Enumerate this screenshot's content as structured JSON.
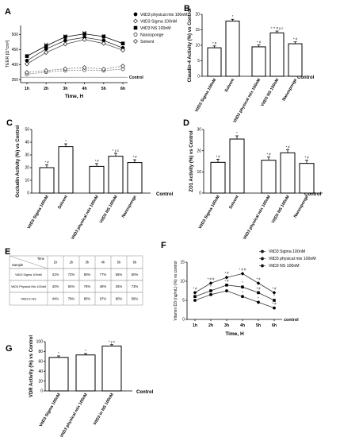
{
  "panels": {
    "A": "A",
    "B": "B",
    "C": "C",
    "D": "D",
    "E": "E",
    "F": "F",
    "G": "G"
  },
  "chart_data": [
    {
      "panel": "A",
      "type": "line",
      "ylabel": "TEER [Ω*cm²]",
      "xlabel": "Time, H",
      "x": [
        "1h",
        "2h",
        "3h",
        "4h",
        "5h",
        "6h"
      ],
      "yticks": [
        350,
        400,
        450,
        500
      ],
      "ylim": [
        340,
        530
      ],
      "control_value": 358,
      "control_label": "Control",
      "series": [
        {
          "name": "VitD3 physical mix 100nM",
          "values": [
            413,
            452,
            480,
            490,
            480,
            455
          ],
          "ann": [
            "* #",
            "* #",
            "* #",
            "* #",
            "* #",
            "* #"
          ]
        },
        {
          "name": "VitD3 Sigma 100nM",
          "values": [
            402,
            440,
            468,
            483,
            470,
            448
          ],
          "ann": [
            "",
            "",
            "",
            "",
            "",
            ""
          ]
        },
        {
          "name": "VitD3 NS 100nM",
          "values": [
            428,
            462,
            492,
            502,
            493,
            470
          ],
          "ann": [
            "",
            "",
            "",
            "",
            "",
            ""
          ]
        },
        {
          "name": "Nanosponge",
          "values": [
            368,
            375,
            380,
            382,
            380,
            385
          ],
          "ann": [
            "",
            "",
            "",
            "",
            "",
            ""
          ]
        },
        {
          "name": "Solvent",
          "values": [
            374,
            380,
            386,
            390,
            385,
            395
          ],
          "ann": [
            "",
            "",
            "",
            "",
            "",
            ""
          ]
        }
      ]
    },
    {
      "panel": "B",
      "type": "bar",
      "ylabel": "Claudin-4 Activity (%) vs Control",
      "categories": [
        "VitD3 Sigma 100nM",
        "Solvent",
        "VitD3 physical mix 100nM",
        "VitD3 NS 100nM",
        "Nanosponge"
      ],
      "values": [
        9.2,
        17.8,
        9.5,
        14.0,
        10.5
      ],
      "ann": [
        "* #",
        "*",
        "* #",
        "* ** # y c",
        "* #"
      ],
      "yticks": [
        0,
        5,
        10,
        15,
        20
      ],
      "ylim": [
        0,
        20
      ],
      "control_label": "Control"
    },
    {
      "panel": "C",
      "type": "bar",
      "ylabel": "Occludin Activity (%) vs Control",
      "categories": [
        "VitD3 Sigma 100nM",
        "Solvent",
        "VitD3 physical mix 100nM",
        "VitD3 NS 100nM",
        "Nanosponge"
      ],
      "values": [
        20,
        36.5,
        21,
        29,
        24
      ],
      "ann": [
        "* #",
        "*",
        "* #",
        "* y c",
        "* #"
      ],
      "yticks": [
        0,
        10,
        20,
        30,
        40,
        50
      ],
      "ylim": [
        0,
        50
      ],
      "control_label": "Control"
    },
    {
      "panel": "D",
      "type": "bar",
      "ylabel": "ZO1 Activity (%) vs Control",
      "categories": [
        "VitD3 Sigma 100nM",
        "Solvent",
        "VitD3 physical mix 100nM",
        "VitD3 NS 100nM",
        "Nanosponge"
      ],
      "values": [
        14.5,
        25.5,
        15.5,
        19,
        14
      ],
      "ann": [
        "* #",
        "*",
        "* #",
        "* #",
        "* #"
      ],
      "yticks": [
        0,
        10,
        20,
        30
      ],
      "ylim": [
        0,
        30
      ],
      "control_label": "Control"
    },
    {
      "panel": "E",
      "type": "table",
      "corner_top": "Time",
      "corner_bottom": "Sample",
      "columns": [
        "1h",
        "2h",
        "3h",
        "4h",
        "5h",
        "6h"
      ],
      "rows": [
        {
          "label": "VitD3 Sigma 100nM",
          "cells": [
            "31%",
            "72%",
            "80%",
            "77%",
            "65%",
            "60%"
          ]
        },
        {
          "label": "VitD3 Physical Mix 100nM",
          "cells": [
            "42%",
            "64%",
            "76%",
            "48%",
            "25%",
            "73%"
          ]
        },
        {
          "label": "VitD3 in NS",
          "cells": [
            "44%",
            "78%",
            "85%",
            "97%",
            "80%",
            "58%"
          ]
        }
      ]
    },
    {
      "panel": "F",
      "type": "line",
      "ylabel": "Vitamin D3 (ng/mL) (%) vs control",
      "xlabel": "Time, H",
      "x": [
        "1h",
        "2h",
        "3h",
        "4h",
        "5h",
        "6h"
      ],
      "yticks": [
        0,
        5,
        10,
        15
      ],
      "ylim": [
        0,
        15
      ],
      "control_label": "control",
      "series": [
        {
          "name": "VitD3 Sigma 100nM",
          "values": [
            5.0,
            6.5,
            7.5,
            6.0,
            4.5,
            3.0
          ],
          "ann": [
            "*",
            "*",
            "*",
            "*",
            "*",
            "* #"
          ]
        },
        {
          "name": "VitD3 physical mix 100nM",
          "values": [
            6.0,
            7.5,
            9.0,
            8.5,
            7.0,
            5.0
          ],
          "ann": [
            "*",
            "*",
            "* #",
            "*",
            "* #",
            "*"
          ]
        },
        {
          "name": "VitD3 NS 100nM",
          "values": [
            7.0,
            9.5,
            11.0,
            12.0,
            9.5,
            7.0
          ],
          "ann": [
            "* #",
            "* # #",
            "* #",
            "* # #",
            "* #",
            "* #"
          ]
        }
      ]
    },
    {
      "panel": "G",
      "type": "bar",
      "ylabel": "VDR Activity (%) vs Control",
      "categories": [
        "VitD3 Sigma 100nM",
        "VitD3 physical mix 100nM",
        "VitD3 in NS 100nM"
      ],
      "values": [
        68,
        73,
        91
      ],
      "ann": [
        "*",
        "*",
        "* y c"
      ],
      "yticks": [
        0,
        20,
        40,
        60,
        80,
        100
      ],
      "ylim": [
        0,
        100
      ],
      "control_label": "Control"
    }
  ]
}
